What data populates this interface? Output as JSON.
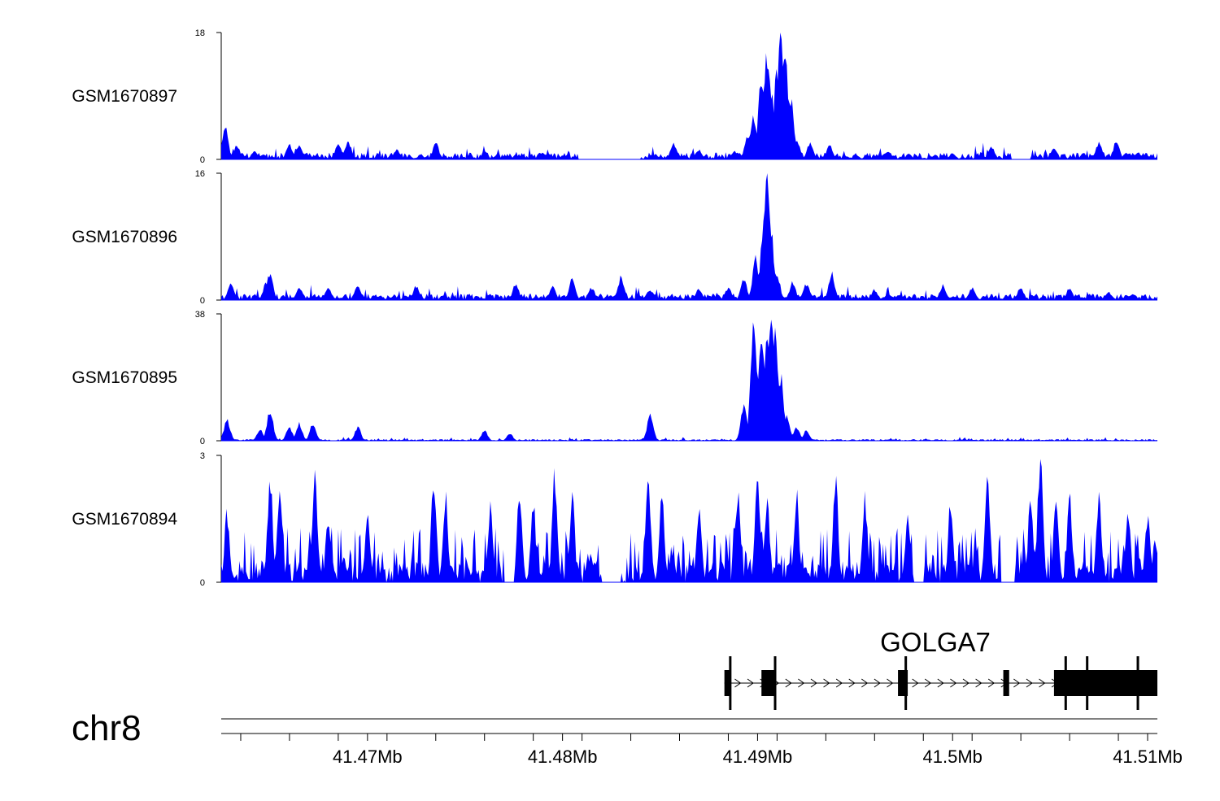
{
  "chart_data": {
    "type": "area",
    "chromosome": "chr8",
    "color": "#0000ff",
    "x_axis": {
      "range": [
        41.4625,
        41.5105
      ],
      "ticks": [
        {
          "value": 41.47,
          "label": "41.47Mb"
        },
        {
          "value": 41.48,
          "label": "41.48Mb"
        },
        {
          "value": 41.49,
          "label": "41.49Mb"
        },
        {
          "value": 41.5,
          "label": "41.5Mb"
        },
        {
          "value": 41.51,
          "label": "41.51Mb"
        }
      ]
    },
    "tracks": [
      {
        "name": "GSM1670897",
        "ylim": [
          0,
          18
        ],
        "ymin_label": "0",
        "ymax_label": "18",
        "background": 0.6,
        "peaks": [
          [
            41.4627,
            4.5
          ],
          [
            41.4633,
            2.0
          ],
          [
            41.4642,
            1.2
          ],
          [
            41.466,
            2.0
          ],
          [
            41.4665,
            1.8
          ],
          [
            41.4685,
            2.2
          ],
          [
            41.469,
            2.6
          ],
          [
            41.4715,
            1.3
          ],
          [
            41.4735,
            2.2
          ],
          [
            41.476,
            1.1
          ],
          [
            41.479,
            0.9
          ],
          [
            41.4815,
            1.0
          ],
          [
            41.4857,
            2.2
          ],
          [
            41.487,
            1.3
          ],
          [
            41.4888,
            1.0
          ],
          [
            41.4895,
            3.5
          ],
          [
            41.4898,
            6.0
          ],
          [
            41.4902,
            11.0
          ],
          [
            41.4905,
            14.5
          ],
          [
            41.4907,
            9.0
          ],
          [
            41.491,
            13.0
          ],
          [
            41.4912,
            18.0
          ],
          [
            41.4914,
            15.5
          ],
          [
            41.4917,
            8.5
          ],
          [
            41.492,
            3.0
          ],
          [
            41.4927,
            2.3
          ],
          [
            41.4937,
            2.0
          ],
          [
            41.4967,
            1.2
          ],
          [
            41.5,
            0.9
          ],
          [
            41.502,
            1.8
          ],
          [
            41.5032,
            2.2
          ],
          [
            41.5052,
            1.6
          ],
          [
            41.5075,
            2.2
          ],
          [
            41.5084,
            2.5
          ],
          [
            41.5095,
            1.0
          ]
        ],
        "gaps": [
          [
            41.4808,
            41.484
          ],
          [
            41.503,
            41.504
          ]
        ]
      },
      {
        "name": "GSM1670896",
        "ylim": [
          0,
          16
        ],
        "ymin_label": "0",
        "ymax_label": "16",
        "background": 0.5,
        "peaks": [
          [
            41.463,
            2.0
          ],
          [
            41.4648,
            2.0
          ],
          [
            41.465,
            3.2
          ],
          [
            41.4665,
            1.5
          ],
          [
            41.468,
            1.5
          ],
          [
            41.4695,
            1.8
          ],
          [
            41.4725,
            1.7
          ],
          [
            41.4776,
            1.9
          ],
          [
            41.4795,
            1.6
          ],
          [
            41.4805,
            2.5
          ],
          [
            41.4815,
            1.5
          ],
          [
            41.483,
            2.8
          ],
          [
            41.4845,
            1.3
          ],
          [
            41.487,
            1.4
          ],
          [
            41.4885,
            1.5
          ],
          [
            41.4893,
            2.5
          ],
          [
            41.4899,
            5.0
          ],
          [
            41.4903,
            9.0
          ],
          [
            41.4905,
            16.0
          ],
          [
            41.4907,
            8.0
          ],
          [
            41.491,
            3.0
          ],
          [
            41.4918,
            2.2
          ],
          [
            41.4925,
            2.0
          ],
          [
            41.4938,
            3.3
          ],
          [
            41.496,
            1.3
          ],
          [
            41.4995,
            1.8
          ],
          [
            41.501,
            1.5
          ],
          [
            41.5035,
            1.5
          ],
          [
            41.506,
            1.5
          ],
          [
            41.508,
            1.0
          ]
        ],
        "gaps": []
      },
      {
        "name": "GSM1670895",
        "ylim": [
          0,
          38
        ],
        "ymin_label": "0",
        "ymax_label": "38",
        "background": 0.3,
        "peaks": [
          [
            41.4628,
            6.0
          ],
          [
            41.4645,
            3.5
          ],
          [
            41.465,
            9.0
          ],
          [
            41.466,
            4.0
          ],
          [
            41.4665,
            5.0
          ],
          [
            41.4672,
            5.0
          ],
          [
            41.4695,
            4.0
          ],
          [
            41.476,
            3.0
          ],
          [
            41.4773,
            2.0
          ],
          [
            41.4845,
            7.5
          ],
          [
            41.4893,
            10.0
          ],
          [
            41.4898,
            36.0
          ],
          [
            41.4902,
            32.0
          ],
          [
            41.4905,
            35.0
          ],
          [
            41.4907,
            38.0
          ],
          [
            41.4909,
            30.0
          ],
          [
            41.4912,
            18.0
          ],
          [
            41.4915,
            7.0
          ],
          [
            41.492,
            4.0
          ],
          [
            41.4925,
            3.0
          ]
        ],
        "gaps": []
      },
      {
        "name": "GSM1670894",
        "ylim": [
          0,
          3
        ],
        "ymin_label": "0",
        "ymax_label": "3",
        "background": 0.0,
        "peaks": [
          [
            41.4628,
            1.6
          ],
          [
            41.465,
            2.5
          ],
          [
            41.4655,
            2.1
          ],
          [
            41.4673,
            2.5
          ],
          [
            41.468,
            1.5
          ],
          [
            41.47,
            1.6
          ],
          [
            41.4734,
            2.5
          ],
          [
            41.474,
            2.0
          ],
          [
            41.4763,
            1.8
          ],
          [
            41.4778,
            2.1
          ],
          [
            41.4785,
            1.8
          ],
          [
            41.4796,
            2.5
          ],
          [
            41.4805,
            2.0
          ],
          [
            41.4823,
            1.8
          ],
          [
            41.4844,
            2.5
          ],
          [
            41.4851,
            2.0
          ],
          [
            41.487,
            1.7
          ],
          [
            41.489,
            2.0
          ],
          [
            41.49,
            2.5
          ],
          [
            41.4905,
            1.9
          ],
          [
            41.492,
            2.0
          ],
          [
            41.494,
            2.5
          ],
          [
            41.4955,
            2.0
          ],
          [
            41.4977,
            1.6
          ],
          [
            41.4999,
            1.8
          ],
          [
            41.5018,
            2.5
          ],
          [
            41.504,
            1.9
          ],
          [
            41.5045,
            3.0
          ],
          [
            41.5053,
            2.0
          ],
          [
            41.506,
            1.9
          ],
          [
            41.5075,
            1.9
          ],
          [
            41.509,
            1.6
          ],
          [
            41.51,
            1.5
          ],
          [
            41.5104,
            1.0
          ]
        ],
        "gaps": [
          [
            41.477,
            41.4775
          ],
          [
            41.482,
            41.483
          ],
          [
            41.498,
            41.4985
          ],
          [
            41.5025,
            41.5032
          ]
        ]
      }
    ],
    "gene": {
      "name": "GOLGA7",
      "start": 41.4883,
      "end": 41.5105,
      "exons": [
        [
          41.4883,
          41.4886
        ],
        [
          41.4902,
          41.4909
        ],
        [
          41.4972,
          41.4977
        ],
        [
          41.5026,
          41.5029
        ],
        [
          41.5052,
          41.5106
        ]
      ],
      "tall_marks": [
        41.4886,
        41.4909,
        41.4976,
        41.5058,
        41.5069,
        41.5095
      ]
    }
  }
}
